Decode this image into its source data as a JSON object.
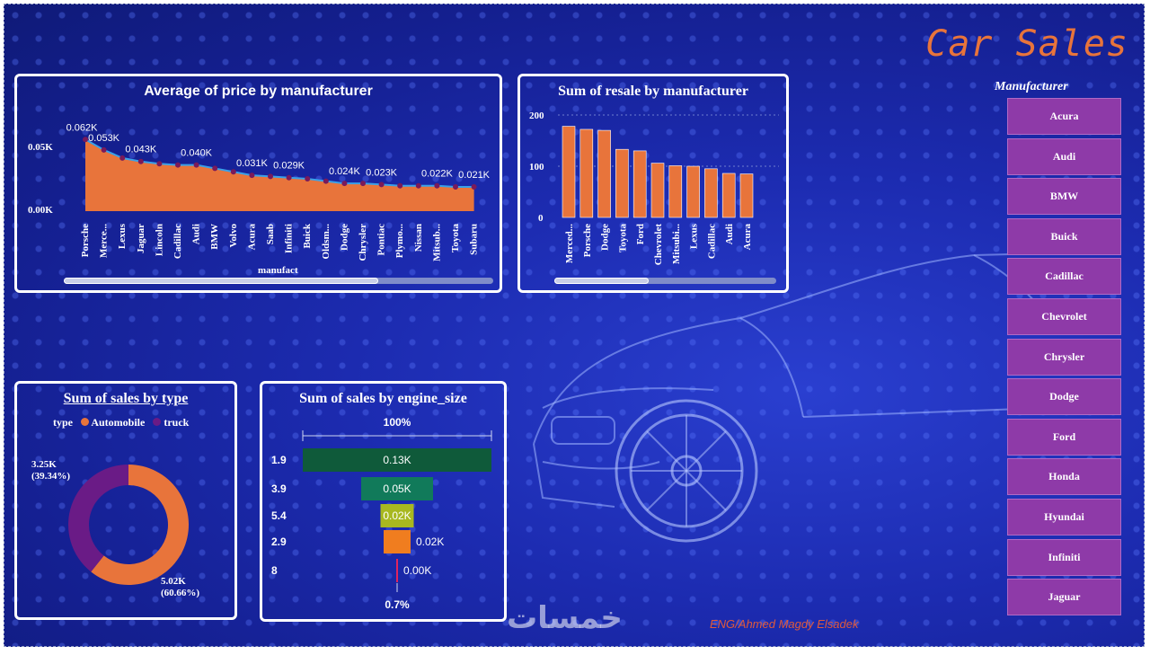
{
  "dashboard": {
    "title": "Car Sales",
    "author": "ENG/Ahmed Magdy Elsadek",
    "watermark": "خمسات"
  },
  "colors": {
    "orange": "#e8743b",
    "purple": "#6a1b86",
    "slicer": "#8e3aa8",
    "line": "#3aa0e8"
  },
  "price_chart": {
    "title": "Average of price by manufacturer",
    "xlabel": "manufact",
    "y_ticks": [
      "0.05K",
      "0.00K"
    ],
    "data_labels": [
      "0.062K",
      "0.053K",
      "0.043K",
      "0.040K",
      "0.031K",
      "0.029K",
      "0.024K",
      "0.023K",
      "0.022K",
      "0.021K"
    ]
  },
  "resale_chart": {
    "title": "Sum of resale by manufacturer",
    "y_ticks": [
      "200",
      "100",
      "0"
    ]
  },
  "donut_chart": {
    "title": "Sum of sales by type",
    "legend_title": "type",
    "legend": [
      "Automobile",
      "truck"
    ],
    "label_truck_value": "3.25K",
    "label_truck_pct": "(39.34%)",
    "label_auto_value": "5.02K",
    "label_auto_pct": "(60.66%)"
  },
  "funnel_chart": {
    "title": "Sum of sales by engine_size",
    "top_label": "100%",
    "bottom_label": "0.7%"
  },
  "slicer": {
    "title": "Manufacturer",
    "items": [
      "Acura",
      "Audi",
      "BMW",
      "Buick",
      "Cadillac",
      "Chevrolet",
      "Chrysler",
      "Dodge",
      "Ford",
      "Honda",
      "Hyundai",
      "Infiniti",
      "Jaguar"
    ]
  },
  "chart_data": [
    {
      "type": "area",
      "title": "Average of price by manufacturer",
      "xlabel": "manufact",
      "categories": [
        "Porsche",
        "Merce...",
        "Lexus",
        "Jaguar",
        "Lincoln",
        "Cadillac",
        "Audi",
        "BMW",
        "Volvo",
        "Acura",
        "Saab",
        "Infiniti",
        "Buick",
        "Oldsm...",
        "Dodge",
        "Chrysler",
        "Pontiac",
        "Plymo...",
        "Nissan",
        "Mitsub...",
        "Toyota",
        "Subaru"
      ],
      "values": [
        0.062,
        0.053,
        0.046,
        0.043,
        0.041,
        0.04,
        0.04,
        0.037,
        0.034,
        0.031,
        0.03,
        0.029,
        0.028,
        0.026,
        0.024,
        0.024,
        0.023,
        0.022,
        0.022,
        0.022,
        0.021,
        0.021
      ],
      "ylim": [
        0,
        0.07
      ]
    },
    {
      "type": "bar",
      "title": "Sum of resale by manufacturer",
      "categories": [
        "Merced...",
        "Porsche",
        "Dodge",
        "Toyota",
        "Ford",
        "Chevrolet",
        "Mitsubi...",
        "Lexus",
        "Cadillac",
        "Audi",
        "Acura"
      ],
      "values": [
        178,
        172,
        170,
        133,
        130,
        106,
        101,
        100,
        95,
        86,
        85
      ],
      "ylim": [
        0,
        220
      ]
    },
    {
      "type": "pie",
      "title": "Sum of sales by type",
      "categories": [
        "Automobile",
        "truck"
      ],
      "values": [
        5.02,
        3.25
      ],
      "percentages": [
        60.66,
        39.34
      ]
    },
    {
      "type": "bar",
      "title": "Sum of sales by engine_size",
      "categories": [
        "1.9",
        "3.9",
        "5.4",
        "2.9",
        "8"
      ],
      "values": [
        0.13,
        0.05,
        0.02,
        0.02,
        0.0
      ],
      "labels": [
        "0.13K",
        "0.05K",
        "0.02K",
        "0.02K",
        "0.00K"
      ],
      "colors": [
        "#0f5a3a",
        "#117a5a",
        "#a8b820",
        "#f07d1f",
        "#e0245e"
      ]
    }
  ]
}
